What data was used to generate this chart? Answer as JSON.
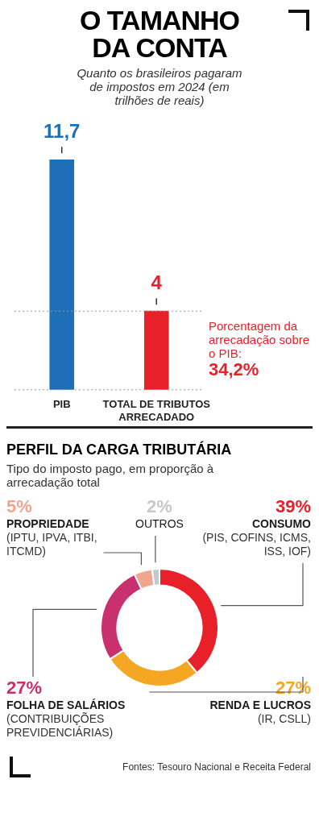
{
  "chart_data": [
    {
      "type": "bar",
      "title": "O TAMANHO DA CONTA",
      "subtitle": "Quanto os brasileiros pagaram de impostos em 2024 (em trilhões de reais)",
      "categories": [
        "PIB",
        "TOTAL DE TRIBUTOS ARRECADADO"
      ],
      "values": [
        11.7,
        4
      ],
      "colors": [
        "#1f6fb8",
        "#e8202a"
      ],
      "value_labels": [
        "11,7",
        "4"
      ],
      "legend": false,
      "ref_lines": [
        {
          "axis": "y",
          "value": 4,
          "color": "#9a9a9a",
          "line_style": "dotted"
        },
        {
          "axis": "y",
          "value": 0,
          "color": "#9a9a9a",
          "line_style": "dotted"
        }
      ],
      "annotations": [
        "Porcentagem da arrecadação sobre o PIB:",
        "34,2%"
      ]
    },
    {
      "type": "donut",
      "title": "PERFIL DA CARGA TRIBUTÁRIA",
      "subtitle": "Tipo do imposto pago, em proporção à arrecadação total",
      "categories": [
        "CONSUMO (PIS, COFINS, ICMS, ISS, IOF)",
        "RENDA E LUCROS (IR, CSLL)",
        "FOLHA DE SALÁRIOS (CONTRIBUIÇÕES PREVIDENCIÁRIAS)",
        "PROPRIEDADE (IPTU, IPVA, ITBI, ITCMD)",
        "OUTROS"
      ],
      "values": [
        39,
        27,
        27,
        5,
        2
      ],
      "colors": [
        "#e8202a",
        "#f5a623",
        "#c8306e",
        "#f0a58f",
        "#c8c8cc"
      ],
      "value_labels": [
        "39%",
        "27%",
        "27%",
        "5%",
        "2%"
      ],
      "legend": false,
      "annotations": [
        "Fontes: Tesouro Nacional e Receita Federal"
      ]
    }
  ]
}
